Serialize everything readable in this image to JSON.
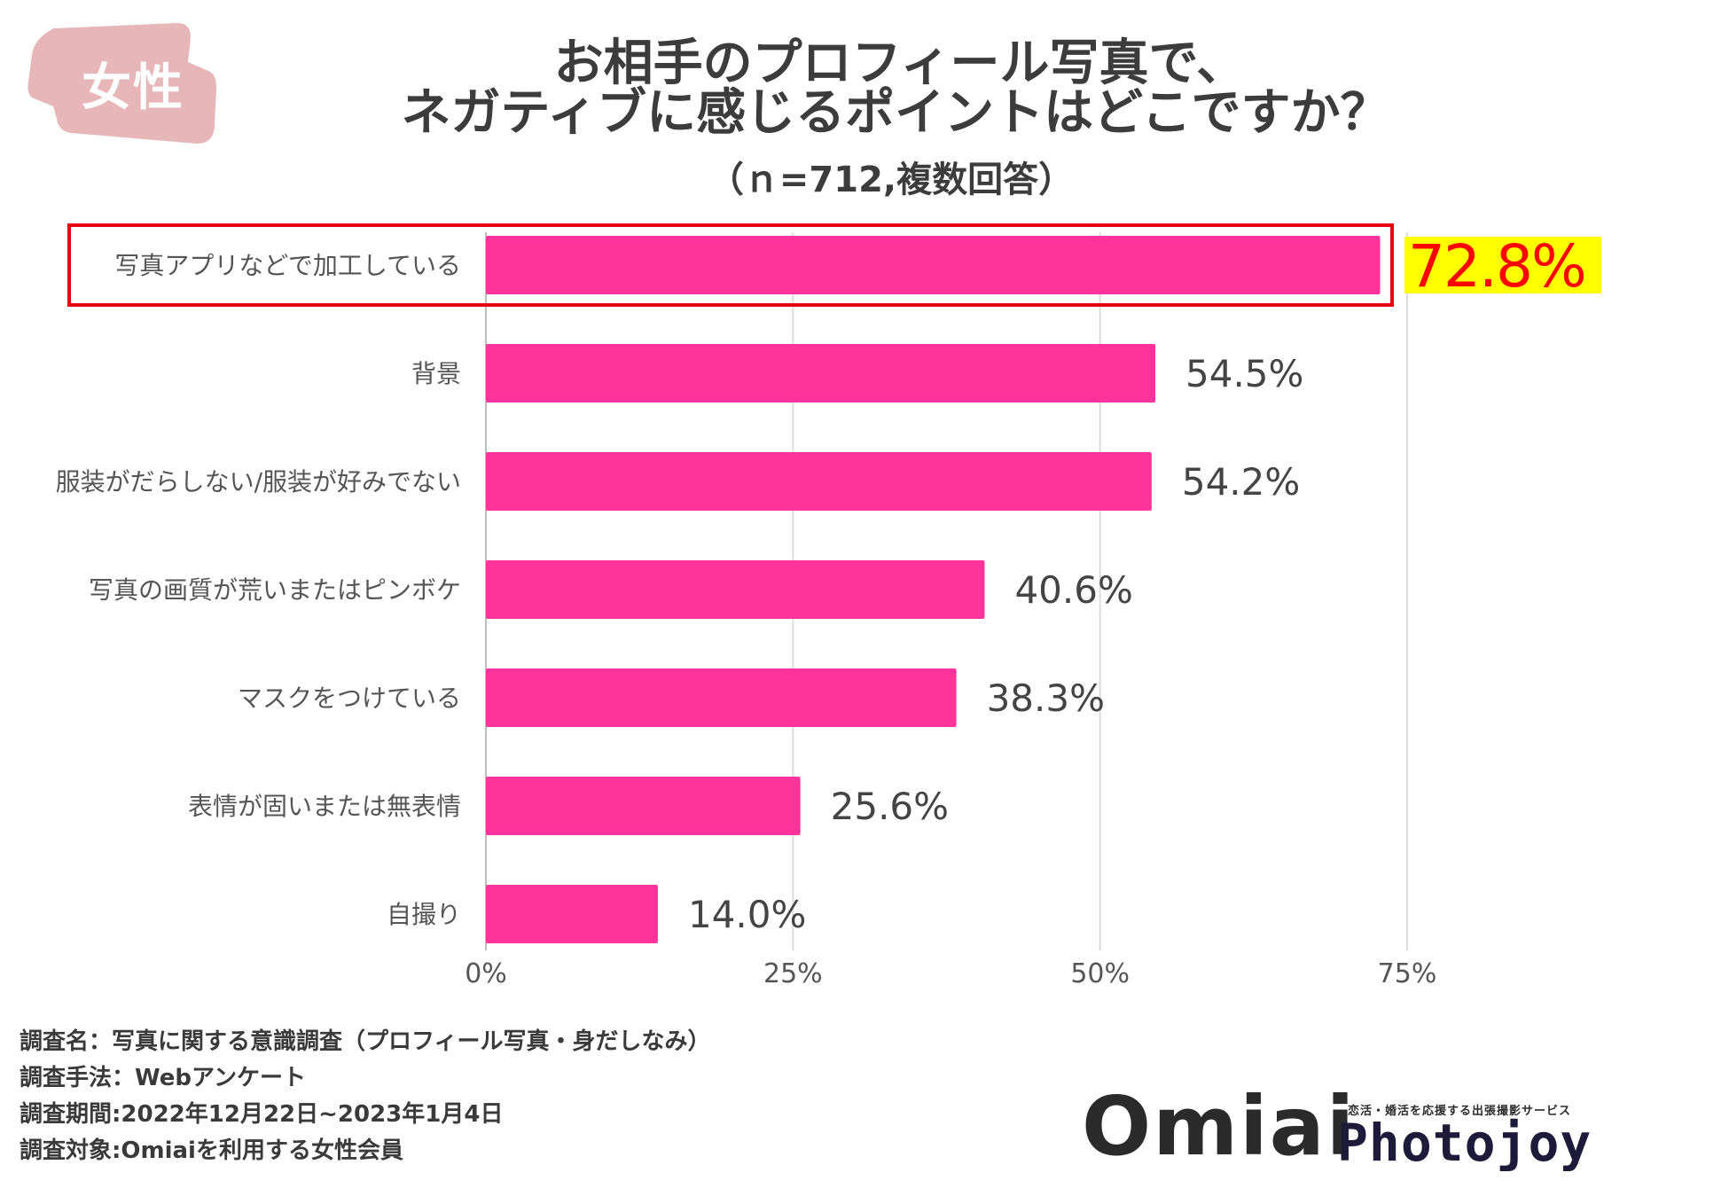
{
  "badge": {
    "label": "女性",
    "color": "#e7b6b8"
  },
  "title": {
    "line1": "お相手のプロフィール写真で、",
    "line2": "ネガティブに感じるポイントはどこですか？",
    "subtitle": "（ｎ=712,複数回答）"
  },
  "chart_data": {
    "type": "bar",
    "orientation": "horizontal",
    "categories": [
      "写真アプリなどで加工している",
      "背景",
      "服装がだらしない/服装が好みでない",
      "写真の画質が荒いまたはピンボケ",
      "マスクをつけている",
      "表情が固いまたは無表情",
      "自撮り"
    ],
    "values": [
      72.8,
      54.5,
      54.2,
      40.6,
      38.3,
      25.6,
      14.0
    ],
    "value_labels": [
      "72.8%",
      "54.5%",
      "54.2%",
      "40.6%",
      "38.3%",
      "25.6%",
      "14.0%"
    ],
    "xlim": [
      0,
      75
    ],
    "x_ticks": [
      0,
      25,
      50,
      75
    ],
    "x_tick_labels": [
      "0%",
      "25%",
      "50%",
      "75%"
    ],
    "grid": true,
    "bar_color": "#ff3399",
    "highlight_index": 0,
    "highlight_border_color": "#e60012",
    "highlight_label_color": "#ff0000",
    "highlight_label_bg": "#ffff00"
  },
  "footer": {
    "lines": [
      "調査名：写真に関する意識調査（プロフィール写真・身だしなみ）",
      "調査手法：Webアンケート",
      "調査期間:2022年12月22日~2023年1月4日",
      "調査対象:Omiaiを利用する女性会員"
    ]
  },
  "logos": {
    "omiai": "Omiai",
    "photojoy_tagline": "恋活・婚活を応援する出張撮影サービス",
    "photojoy": "Photojoy"
  }
}
